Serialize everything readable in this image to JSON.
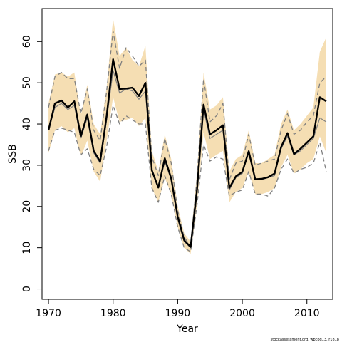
{
  "chart_data": {
    "type": "line",
    "xlabel": "Year",
    "ylabel": "SSB",
    "xlim": [
      1969,
      2014
    ],
    "ylim": [
      -2.5,
      68
    ],
    "x_ticks": [
      1970,
      1980,
      1990,
      2000,
      2010
    ],
    "y_ticks": [
      0,
      10,
      20,
      30,
      40,
      50,
      60
    ],
    "grid": false,
    "legend": "none",
    "credit": "stockassessment.org, wbcod13, r1818",
    "colors": {
      "band": "#f5deb3",
      "main": "#000000",
      "secondary": "#808080"
    },
    "x": [
      1970,
      1971,
      1972,
      1973,
      1974,
      1975,
      1976,
      1977,
      1978,
      1979,
      1980,
      1981,
      1982,
      1983,
      1984,
      1985,
      1986,
      1987,
      1988,
      1989,
      1990,
      1991,
      1992,
      1993,
      1994,
      1995,
      1996,
      1997,
      1998,
      1999,
      2000,
      2001,
      2002,
      2003,
      2004,
      2005,
      2006,
      2007,
      2008,
      2009,
      2010,
      2011,
      2012,
      2013
    ],
    "series": [
      {
        "role": "estimate",
        "style": "solid",
        "color": "#000000",
        "values": [
          38.5,
          45,
          45.7,
          44,
          45.5,
          37,
          42.3,
          33.5,
          30.9,
          42,
          55.7,
          48.5,
          48.6,
          48.8,
          46.8,
          50,
          28.8,
          24.6,
          31.7,
          26.8,
          17.5,
          11.8,
          10.2,
          24.2,
          44.7,
          37.5,
          38.5,
          39.7,
          24.5,
          27.3,
          28.4,
          33.4,
          26.6,
          26.7,
          27.1,
          28,
          34.4,
          37.8,
          32.7,
          34,
          35.5,
          37,
          46.5,
          45.5
        ]
      },
      {
        "role": "upper-band",
        "style": "fill",
        "color": "#f5deb3",
        "values": [
          45,
          52,
          52.5,
          51.5,
          52.5,
          42,
          49.5,
          40,
          37.5,
          49,
          65.5,
          56.5,
          58.5,
          55.5,
          54,
          59,
          33.5,
          28.5,
          37.5,
          31.5,
          20,
          13.5,
          11.5,
          28.5,
          52.5,
          43.5,
          44.5,
          46.5,
          28.5,
          31.5,
          32.5,
          38.5,
          30.5,
          30.5,
          31.5,
          32.5,
          40,
          43.5,
          38.5,
          40,
          42,
          44,
          57.5,
          61
        ]
      },
      {
        "role": "lower-band",
        "style": "fill",
        "color": "#f5deb3",
        "values": [
          33,
          38.5,
          39.5,
          38,
          39,
          32,
          36,
          28.5,
          26,
          36,
          46.5,
          40.5,
          41,
          41.5,
          39.5,
          41.5,
          24.5,
          21,
          27,
          23,
          15,
          10,
          8.5,
          20.5,
          38,
          31.5,
          32.5,
          33.5,
          21,
          23.5,
          24.5,
          28.5,
          23,
          23,
          23.5,
          24.5,
          29.5,
          32.5,
          28,
          29,
          30.5,
          31.5,
          37,
          33
        ]
      },
      {
        "role": "dashed-upper",
        "style": "dashed",
        "color": "#808080",
        "values": [
          44,
          51.5,
          52.5,
          51,
          51,
          42.5,
          48.5,
          38.5,
          36,
          48,
          62.5,
          53.5,
          58.5,
          56.5,
          54,
          55.5,
          32,
          27.5,
          36.5,
          30.5,
          19,
          12.5,
          10.5,
          27,
          51,
          40.5,
          42,
          45,
          26.5,
          30.5,
          31,
          37.5,
          30,
          30.5,
          31,
          31.5,
          38.5,
          42.5,
          37.5,
          38.5,
          40.5,
          42,
          50,
          51.5
        ]
      },
      {
        "role": "dashed-lower",
        "style": "dashed",
        "color": "#808080",
        "values": [
          33.5,
          38.5,
          39,
          38.5,
          38,
          32.5,
          34,
          29,
          27.5,
          34.5,
          44.5,
          40,
          42,
          41,
          40,
          40,
          24.5,
          21,
          27.5,
          23,
          15,
          10,
          9,
          20.5,
          35,
          31,
          32,
          31.5,
          22.5,
          23.5,
          24,
          28.5,
          23,
          23,
          22.5,
          24.5,
          29,
          31.5,
          28,
          29,
          29.5,
          30.5,
          35.5,
          28.5
        ]
      },
      {
        "role": "gray-solid",
        "style": "solid",
        "color": "#808080",
        "values": [
          38.5,
          44,
          45,
          43.5,
          44.5,
          36.5,
          41.5,
          33,
          30.5,
          41,
          53,
          47.5,
          48.5,
          48,
          46,
          48,
          28.5,
          24.5,
          31,
          26.5,
          17,
          11.5,
          10,
          23.5,
          43.5,
          36.5,
          37.5,
          38.5,
          24,
          27,
          28,
          33,
          26.5,
          26.5,
          27,
          27.5,
          34,
          37,
          32.5,
          33.5,
          35,
          36.5,
          41.5,
          40.5
        ]
      }
    ]
  }
}
